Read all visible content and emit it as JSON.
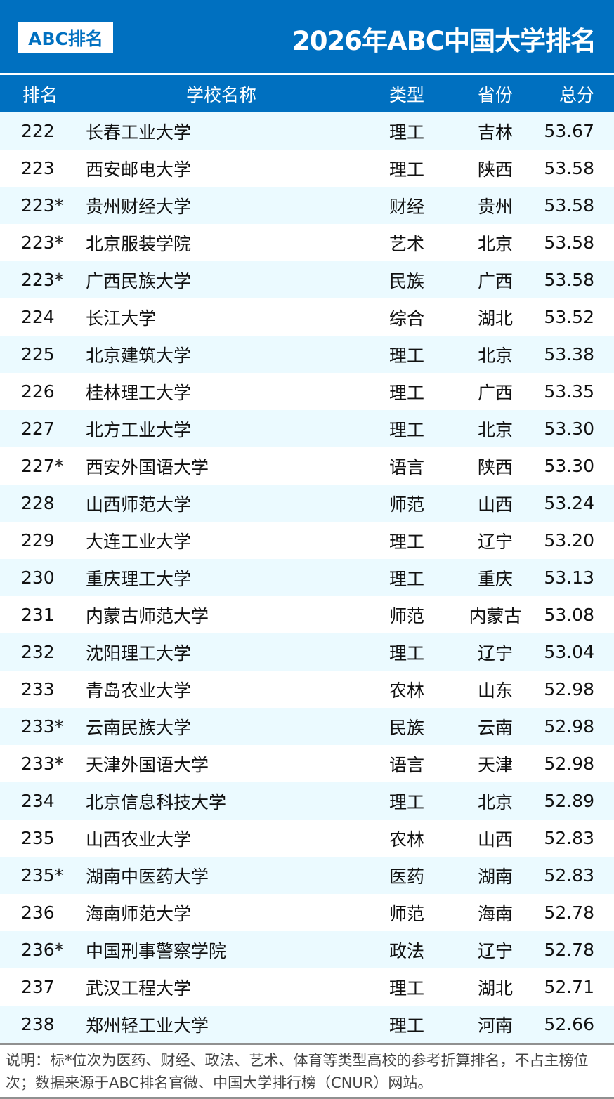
{
  "header": {
    "logo": "ABC排名",
    "title": "2026年ABC中国大学排名"
  },
  "columns": [
    "排名",
    "学校名称",
    "类型",
    "省份",
    "总分"
  ],
  "rows": [
    [
      "222",
      "长春工业大学",
      "理工",
      "吉林",
      "53.67"
    ],
    [
      "223",
      "西安邮电大学",
      "理工",
      "陕西",
      "53.58"
    ],
    [
      "223*",
      "贵州财经大学",
      "财经",
      "贵州",
      "53.58"
    ],
    [
      "223*",
      "北京服装学院",
      "艺术",
      "北京",
      "53.58"
    ],
    [
      "223*",
      "广西民族大学",
      "民族",
      "广西",
      "53.58"
    ],
    [
      "224",
      "长江大学",
      "综合",
      "湖北",
      "53.52"
    ],
    [
      "225",
      "北京建筑大学",
      "理工",
      "北京",
      "53.38"
    ],
    [
      "226",
      "桂林理工大学",
      "理工",
      "广西",
      "53.35"
    ],
    [
      "227",
      "北方工业大学",
      "理工",
      "北京",
      "53.30"
    ],
    [
      "227*",
      "西安外国语大学",
      "语言",
      "陕西",
      "53.30"
    ],
    [
      "228",
      "山西师范大学",
      "师范",
      "山西",
      "53.24"
    ],
    [
      "229",
      "大连工业大学",
      "理工",
      "辽宁",
      "53.20"
    ],
    [
      "230",
      "重庆理工大学",
      "理工",
      "重庆",
      "53.13"
    ],
    [
      "231",
      "内蒙古师范大学",
      "师范",
      "内蒙古",
      "53.08"
    ],
    [
      "232",
      "沈阳理工大学",
      "理工",
      "辽宁",
      "53.04"
    ],
    [
      "233",
      "青岛农业大学",
      "农林",
      "山东",
      "52.98"
    ],
    [
      "233*",
      "云南民族大学",
      "民族",
      "云南",
      "52.98"
    ],
    [
      "233*",
      "天津外国语大学",
      "语言",
      "天津",
      "52.98"
    ],
    [
      "234",
      "北京信息科技大学",
      "理工",
      "北京",
      "52.89"
    ],
    [
      "235",
      "山西农业大学",
      "农林",
      "山西",
      "52.83"
    ],
    [
      "235*",
      "湖南中医药大学",
      "医药",
      "湖南",
      "52.83"
    ],
    [
      "236",
      "海南师范大学",
      "师范",
      "海南",
      "52.78"
    ],
    [
      "236*",
      "中国刑事警察学院",
      "政法",
      "辽宁",
      "52.78"
    ],
    [
      "237",
      "武汉工程大学",
      "理工",
      "湖北",
      "52.71"
    ],
    [
      "238",
      "郑州轻工业大学",
      "理工",
      "河南",
      "52.66"
    ]
  ],
  "footer": "说明：标*位次为医药、财经、政法、艺术、体育等类型高校的参考折算排名，不占主榜位次；数据来源于ABC排名官微、中国大学排行榜（CNUR）网站。",
  "colors": {
    "brand": "#0070C0",
    "stripe": "#EBFAFF"
  }
}
